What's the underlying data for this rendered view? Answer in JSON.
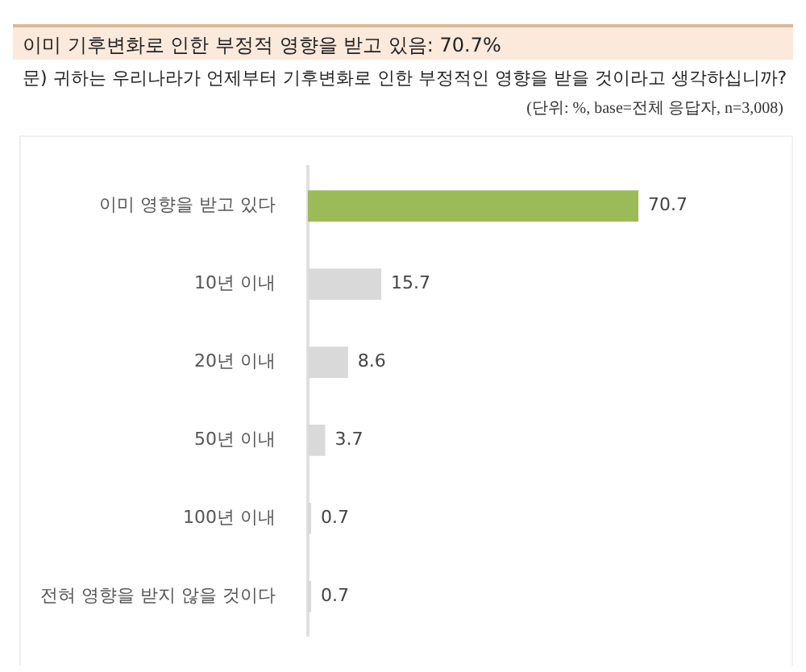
{
  "chart_data": {
    "type": "bar",
    "orientation": "horizontal",
    "title": "이미 기후변화로 인한 부정적 영향을 받고 있음: 70.7%",
    "subtitle": "문) 귀하는 우리나라가 언제부터 기후변화로 인한 부정적인 영향을 받을 것이라고 생각하십니까?",
    "annotations": [
      "(단위: %, base=전체 응답자, n=3,008)"
    ],
    "categories": [
      "이미 영향을 받고 있다",
      "10년 이내",
      "20년 이내",
      "50년 이내",
      "100년 이내",
      "전혀 영향을 받지 않을 것이다"
    ],
    "values": [
      70.7,
      15.7,
      8.6,
      3.7,
      0.7,
      0.7
    ],
    "colors": [
      "#9bbb59",
      "#d9d9d9",
      "#d9d9d9",
      "#d9d9d9",
      "#d9d9d9",
      "#d9d9d9"
    ],
    "data_labels": true,
    "legend": false
  }
}
